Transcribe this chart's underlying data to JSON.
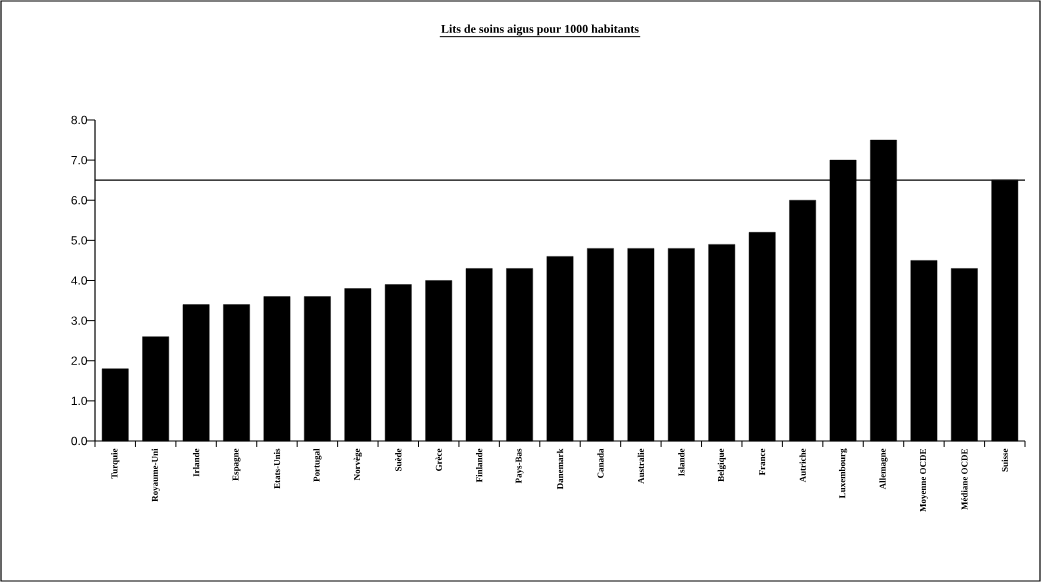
{
  "chart_data": {
    "type": "bar",
    "title": "Lits de soins aigus pour 1000 habitants",
    "categories": [
      "Turquie",
      "Royaume-Uni",
      "Irlande",
      "Espagne",
      "Etats-Unis",
      "Portugal",
      "Norvège",
      "Suède",
      "Grèce",
      "Finlande",
      "Pays-Bas",
      "Danemark",
      "Canada",
      "Australie",
      "Islande",
      "Belgique",
      "France",
      "Autriche",
      "Luxembourg",
      "Allemagne",
      "Moyenne OCDE",
      "Médiane OCDE",
      "Suisse"
    ],
    "values": [
      1.8,
      2.6,
      3.4,
      3.4,
      3.6,
      3.6,
      3.8,
      3.9,
      4.0,
      4.3,
      4.3,
      4.6,
      4.8,
      4.8,
      4.8,
      4.9,
      5.2,
      6.0,
      7.0,
      7.5,
      4.5,
      4.3,
      6.5
    ],
    "color": "#000000",
    "ylim": [
      0,
      8
    ],
    "yticks": [
      {
        "value": 0,
        "label": "0.0"
      },
      {
        "value": 1,
        "label": "1.0"
      },
      {
        "value": 2,
        "label": "2.0"
      },
      {
        "value": 3,
        "label": "3.0"
      },
      {
        "value": 4,
        "label": "4.0"
      },
      {
        "value": 5,
        "label": "5.0"
      },
      {
        "value": 6,
        "label": "6.0"
      },
      {
        "value": 7,
        "label": "7.0"
      },
      {
        "value": 8,
        "label": "8.0"
      }
    ],
    "ref_lines": [
      {
        "axis": "y",
        "value": 6.5,
        "color": "#000000"
      }
    ],
    "grid": false
  }
}
